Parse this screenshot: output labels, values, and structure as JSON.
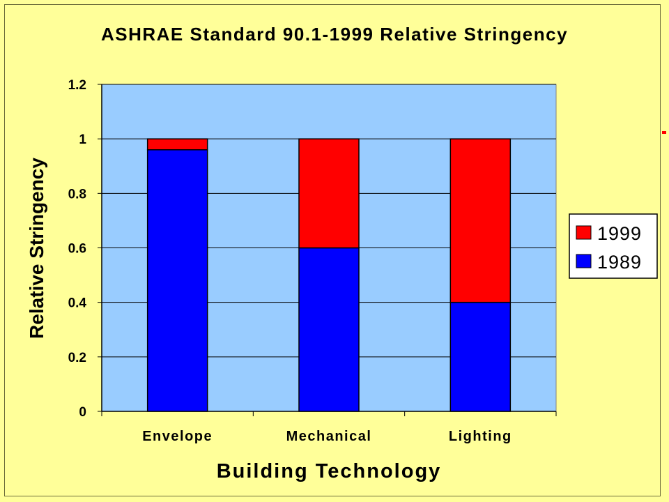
{
  "chart_data": {
    "type": "bar",
    "stacked": true,
    "title": "ASHRAE Standard 90.1-1999 Relative Stringency",
    "xlabel": "Building Technology",
    "ylabel": "Relative Stringency",
    "categories": [
      "Envelope",
      "Mechanical",
      "Lighting"
    ],
    "series": [
      {
        "name": "1989",
        "values": [
          0.96,
          0.6,
          0.4
        ],
        "color": "#0000ff"
      },
      {
        "name": "1999",
        "values": [
          0.04,
          0.4,
          0.6
        ],
        "color": "#ff0000"
      }
    ],
    "ylim": [
      0,
      1.2
    ],
    "yticks": [
      "0",
      "0.2",
      "0.4",
      "0.6",
      "0.8",
      "1",
      "1.2"
    ],
    "grid": true,
    "legend_position": "right",
    "legend_order": [
      "1999",
      "1989"
    ],
    "plot_background": "#99ccff",
    "page_background": "#ffff99"
  }
}
